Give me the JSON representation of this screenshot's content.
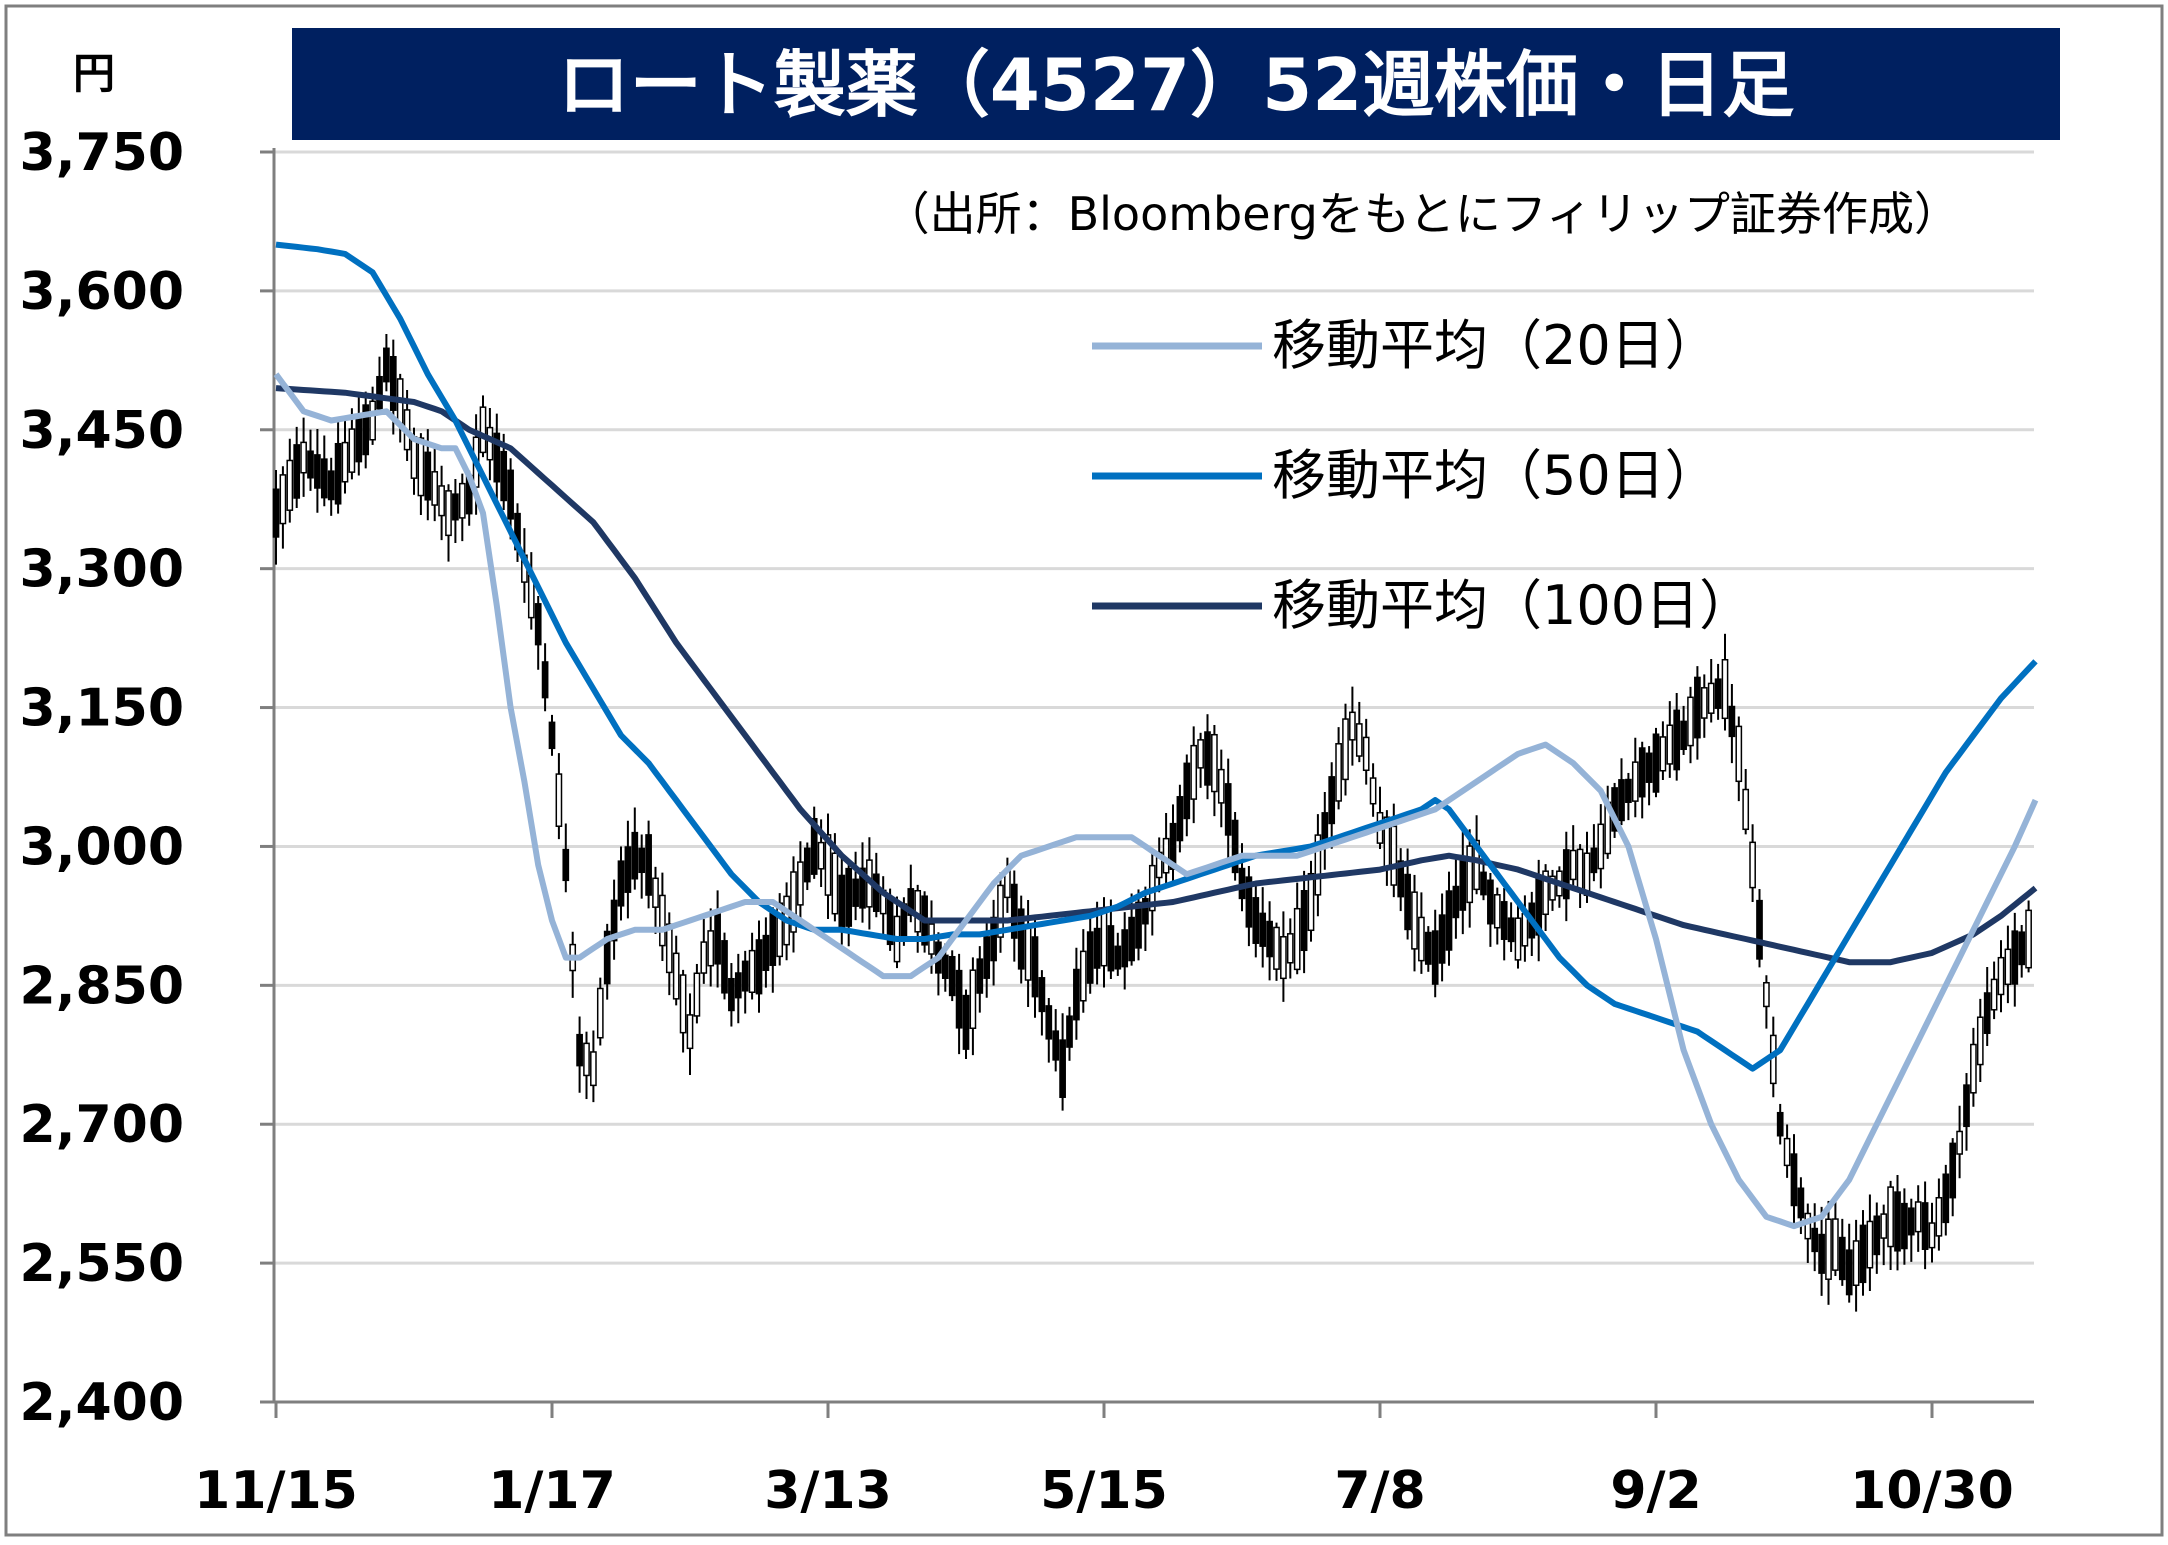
{
  "chart_data": {
    "type": "candlestick",
    "title": "ロート製薬（4527）52週株価・日足",
    "source_note": "（出所：Bloombergをもとにフィリップ証券作成）",
    "ylabel": "円",
    "ylim": [
      2400,
      3750
    ],
    "yticks": [
      2400,
      2550,
      2700,
      2850,
      3000,
      3150,
      3300,
      3450,
      3600,
      3750
    ],
    "ytick_labels": [
      "2,400",
      "2,550",
      "2,700",
      "2,850",
      "3,000",
      "3,150",
      "3,300",
      "3,450",
      "3,600",
      "3,750"
    ],
    "x_tick_labels": [
      "11/15",
      "1/17",
      "3/13",
      "5/15",
      "7/8",
      "9/2",
      "10/30"
    ],
    "x_tick_index": [
      0,
      40,
      80,
      120,
      160,
      200,
      240
    ],
    "n_days": 255,
    "grid": true,
    "legend_position": "top-right",
    "legend": [
      {
        "name": "移動平均（20日）",
        "color": "#95b3d7"
      },
      {
        "name": "移動平均（50日）",
        "color": "#0070c0"
      },
      {
        "name": "移動平均（100日）",
        "color": "#1f3864"
      }
    ],
    "ohlc_keypoints": [
      [
        0,
        3360
      ],
      [
        4,
        3420
      ],
      [
        8,
        3390
      ],
      [
        12,
        3440
      ],
      [
        14,
        3460
      ],
      [
        16,
        3520
      ],
      [
        18,
        3480
      ],
      [
        20,
        3420
      ],
      [
        22,
        3400
      ],
      [
        25,
        3360
      ],
      [
        28,
        3380
      ],
      [
        30,
        3450
      ],
      [
        32,
        3420
      ],
      [
        34,
        3380
      ],
      [
        36,
        3300
      ],
      [
        38,
        3240
      ],
      [
        40,
        3120
      ],
      [
        42,
        2980
      ],
      [
        44,
        2780
      ],
      [
        46,
        2760
      ],
      [
        48,
        2880
      ],
      [
        50,
        2960
      ],
      [
        52,
        2990
      ],
      [
        54,
        2980
      ],
      [
        56,
        2920
      ],
      [
        58,
        2860
      ],
      [
        60,
        2800
      ],
      [
        62,
        2880
      ],
      [
        64,
        2900
      ],
      [
        66,
        2840
      ],
      [
        68,
        2860
      ],
      [
        70,
        2870
      ],
      [
        72,
        2900
      ],
      [
        74,
        2920
      ],
      [
        76,
        2960
      ],
      [
        78,
        3000
      ],
      [
        80,
        2980
      ],
      [
        82,
        2940
      ],
      [
        84,
        2950
      ],
      [
        86,
        2960
      ],
      [
        88,
        2940
      ],
      [
        90,
        2900
      ],
      [
        92,
        2940
      ],
      [
        94,
        2920
      ],
      [
        96,
        2880
      ],
      [
        98,
        2860
      ],
      [
        100,
        2810
      ],
      [
        102,
        2860
      ],
      [
        104,
        2900
      ],
      [
        106,
        2960
      ],
      [
        108,
        2900
      ],
      [
        110,
        2870
      ],
      [
        112,
        2810
      ],
      [
        114,
        2760
      ],
      [
        116,
        2840
      ],
      [
        118,
        2880
      ],
      [
        120,
        2900
      ],
      [
        122,
        2880
      ],
      [
        124,
        2900
      ],
      [
        126,
        2930
      ],
      [
        128,
        2980
      ],
      [
        130,
        3000
      ],
      [
        132,
        3060
      ],
      [
        134,
        3100
      ],
      [
        136,
        3090
      ],
      [
        138,
        3040
      ],
      [
        140,
        2960
      ],
      [
        142,
        2920
      ],
      [
        144,
        2900
      ],
      [
        146,
        2880
      ],
      [
        148,
        2900
      ],
      [
        150,
        2940
      ],
      [
        152,
        3020
      ],
      [
        154,
        3080
      ],
      [
        156,
        3130
      ],
      [
        158,
        3100
      ],
      [
        160,
        3020
      ],
      [
        162,
        2990
      ],
      [
        164,
        2940
      ],
      [
        166,
        2900
      ],
      [
        168,
        2880
      ],
      [
        170,
        2920
      ],
      [
        172,
        2960
      ],
      [
        174,
        2980
      ],
      [
        176,
        2940
      ],
      [
        178,
        2920
      ],
      [
        180,
        2900
      ],
      [
        182,
        2920
      ],
      [
        184,
        2950
      ],
      [
        186,
        2960
      ],
      [
        188,
        2980
      ],
      [
        190,
        2970
      ],
      [
        192,
        3000
      ],
      [
        194,
        3040
      ],
      [
        196,
        3060
      ],
      [
        198,
        3080
      ],
      [
        200,
        3090
      ],
      [
        202,
        3110
      ],
      [
        204,
        3120
      ],
      [
        206,
        3150
      ],
      [
        208,
        3160
      ],
      [
        210,
        3170
      ],
      [
        212,
        3100
      ],
      [
        214,
        2980
      ],
      [
        216,
        2840
      ],
      [
        218,
        2700
      ],
      [
        220,
        2640
      ],
      [
        222,
        2590
      ],
      [
        224,
        2560
      ],
      [
        226,
        2570
      ],
      [
        228,
        2540
      ],
      [
        230,
        2560
      ],
      [
        232,
        2580
      ],
      [
        234,
        2600
      ],
      [
        236,
        2590
      ],
      [
        238,
        2600
      ],
      [
        240,
        2580
      ],
      [
        242,
        2620
      ],
      [
        244,
        2680
      ],
      [
        246,
        2760
      ],
      [
        248,
        2820
      ],
      [
        250,
        2860
      ],
      [
        252,
        2880
      ],
      [
        254,
        2900
      ]
    ],
    "ma20": [
      [
        0,
        3510
      ],
      [
        4,
        3470
      ],
      [
        8,
        3460
      ],
      [
        12,
        3465
      ],
      [
        16,
        3470
      ],
      [
        20,
        3440
      ],
      [
        24,
        3430
      ],
      [
        26,
        3430
      ],
      [
        28,
        3400
      ],
      [
        30,
        3360
      ],
      [
        32,
        3260
      ],
      [
        34,
        3150
      ],
      [
        36,
        3070
      ],
      [
        38,
        2980
      ],
      [
        40,
        2920
      ],
      [
        42,
        2880
      ],
      [
        44,
        2880
      ],
      [
        46,
        2890
      ],
      [
        48,
        2900
      ],
      [
        52,
        2910
      ],
      [
        56,
        2910
      ],
      [
        60,
        2920
      ],
      [
        64,
        2930
      ],
      [
        68,
        2940
      ],
      [
        72,
        2940
      ],
      [
        76,
        2920
      ],
      [
        80,
        2900
      ],
      [
        84,
        2880
      ],
      [
        88,
        2860
      ],
      [
        92,
        2860
      ],
      [
        96,
        2880
      ],
      [
        100,
        2920
      ],
      [
        104,
        2960
      ],
      [
        108,
        2990
      ],
      [
        112,
        3000
      ],
      [
        116,
        3010
      ],
      [
        120,
        3010
      ],
      [
        124,
        3010
      ],
      [
        128,
        2990
      ],
      [
        132,
        2970
      ],
      [
        136,
        2980
      ],
      [
        140,
        2990
      ],
      [
        144,
        2990
      ],
      [
        148,
        2990
      ],
      [
        152,
        3000
      ],
      [
        156,
        3010
      ],
      [
        160,
        3020
      ],
      [
        164,
        3030
      ],
      [
        168,
        3040
      ],
      [
        172,
        3060
      ],
      [
        176,
        3080
      ],
      [
        180,
        3100
      ],
      [
        184,
        3110
      ],
      [
        188,
        3090
      ],
      [
        192,
        3060
      ],
      [
        196,
        3000
      ],
      [
        200,
        2900
      ],
      [
        204,
        2780
      ],
      [
        208,
        2700
      ],
      [
        212,
        2640
      ],
      [
        216,
        2600
      ],
      [
        220,
        2590
      ],
      [
        224,
        2600
      ],
      [
        228,
        2640
      ],
      [
        232,
        2700
      ],
      [
        236,
        2760
      ],
      [
        240,
        2820
      ],
      [
        244,
        2880
      ],
      [
        248,
        2940
      ],
      [
        252,
        3000
      ],
      [
        255,
        3050
      ]
    ],
    "ma50": [
      [
        0,
        3650
      ],
      [
        6,
        3645
      ],
      [
        10,
        3640
      ],
      [
        14,
        3620
      ],
      [
        18,
        3570
      ],
      [
        22,
        3510
      ],
      [
        26,
        3460
      ],
      [
        30,
        3400
      ],
      [
        34,
        3340
      ],
      [
        38,
        3280
      ],
      [
        42,
        3220
      ],
      [
        46,
        3170
      ],
      [
        50,
        3120
      ],
      [
        54,
        3090
      ],
      [
        58,
        3050
      ],
      [
        62,
        3010
      ],
      [
        66,
        2970
      ],
      [
        70,
        2940
      ],
      [
        74,
        2920
      ],
      [
        78,
        2910
      ],
      [
        82,
        2910
      ],
      [
        86,
        2905
      ],
      [
        90,
        2900
      ],
      [
        94,
        2900
      ],
      [
        98,
        2905
      ],
      [
        102,
        2905
      ],
      [
        106,
        2910
      ],
      [
        110,
        2915
      ],
      [
        114,
        2920
      ],
      [
        118,
        2925
      ],
      [
        122,
        2935
      ],
      [
        126,
        2950
      ],
      [
        130,
        2960
      ],
      [
        134,
        2970
      ],
      [
        138,
        2980
      ],
      [
        142,
        2990
      ],
      [
        146,
        2995
      ],
      [
        150,
        3000
      ],
      [
        154,
        3010
      ],
      [
        158,
        3020
      ],
      [
        162,
        3030
      ],
      [
        166,
        3040
      ],
      [
        168,
        3050
      ],
      [
        170,
        3040
      ],
      [
        174,
        3000
      ],
      [
        178,
        2960
      ],
      [
        182,
        2920
      ],
      [
        186,
        2880
      ],
      [
        190,
        2850
      ],
      [
        194,
        2830
      ],
      [
        198,
        2820
      ],
      [
        202,
        2810
      ],
      [
        206,
        2800
      ],
      [
        210,
        2780
      ],
      [
        214,
        2760
      ],
      [
        218,
        2780
      ],
      [
        222,
        2830
      ],
      [
        226,
        2880
      ],
      [
        230,
        2930
      ],
      [
        234,
        2980
      ],
      [
        238,
        3030
      ],
      [
        242,
        3080
      ],
      [
        246,
        3120
      ],
      [
        250,
        3160
      ],
      [
        255,
        3200
      ]
    ],
    "ma100": [
      [
        0,
        3495
      ],
      [
        10,
        3490
      ],
      [
        20,
        3480
      ],
      [
        24,
        3470
      ],
      [
        28,
        3450
      ],
      [
        34,
        3430
      ],
      [
        40,
        3390
      ],
      [
        46,
        3350
      ],
      [
        52,
        3290
      ],
      [
        58,
        3220
      ],
      [
        64,
        3160
      ],
      [
        70,
        3100
      ],
      [
        76,
        3040
      ],
      [
        82,
        2990
      ],
      [
        88,
        2950
      ],
      [
        94,
        2920
      ],
      [
        100,
        2920
      ],
      [
        106,
        2920
      ],
      [
        112,
        2925
      ],
      [
        118,
        2930
      ],
      [
        124,
        2935
      ],
      [
        130,
        2940
      ],
      [
        136,
        2950
      ],
      [
        142,
        2960
      ],
      [
        148,
        2965
      ],
      [
        154,
        2970
      ],
      [
        160,
        2975
      ],
      [
        166,
        2985
      ],
      [
        170,
        2990
      ],
      [
        174,
        2985
      ],
      [
        180,
        2975
      ],
      [
        186,
        2960
      ],
      [
        192,
        2945
      ],
      [
        198,
        2930
      ],
      [
        204,
        2915
      ],
      [
        210,
        2905
      ],
      [
        216,
        2895
      ],
      [
        222,
        2885
      ],
      [
        228,
        2875
      ],
      [
        234,
        2875
      ],
      [
        240,
        2885
      ],
      [
        246,
        2905
      ],
      [
        250,
        2925
      ],
      [
        255,
        2955
      ]
    ]
  }
}
